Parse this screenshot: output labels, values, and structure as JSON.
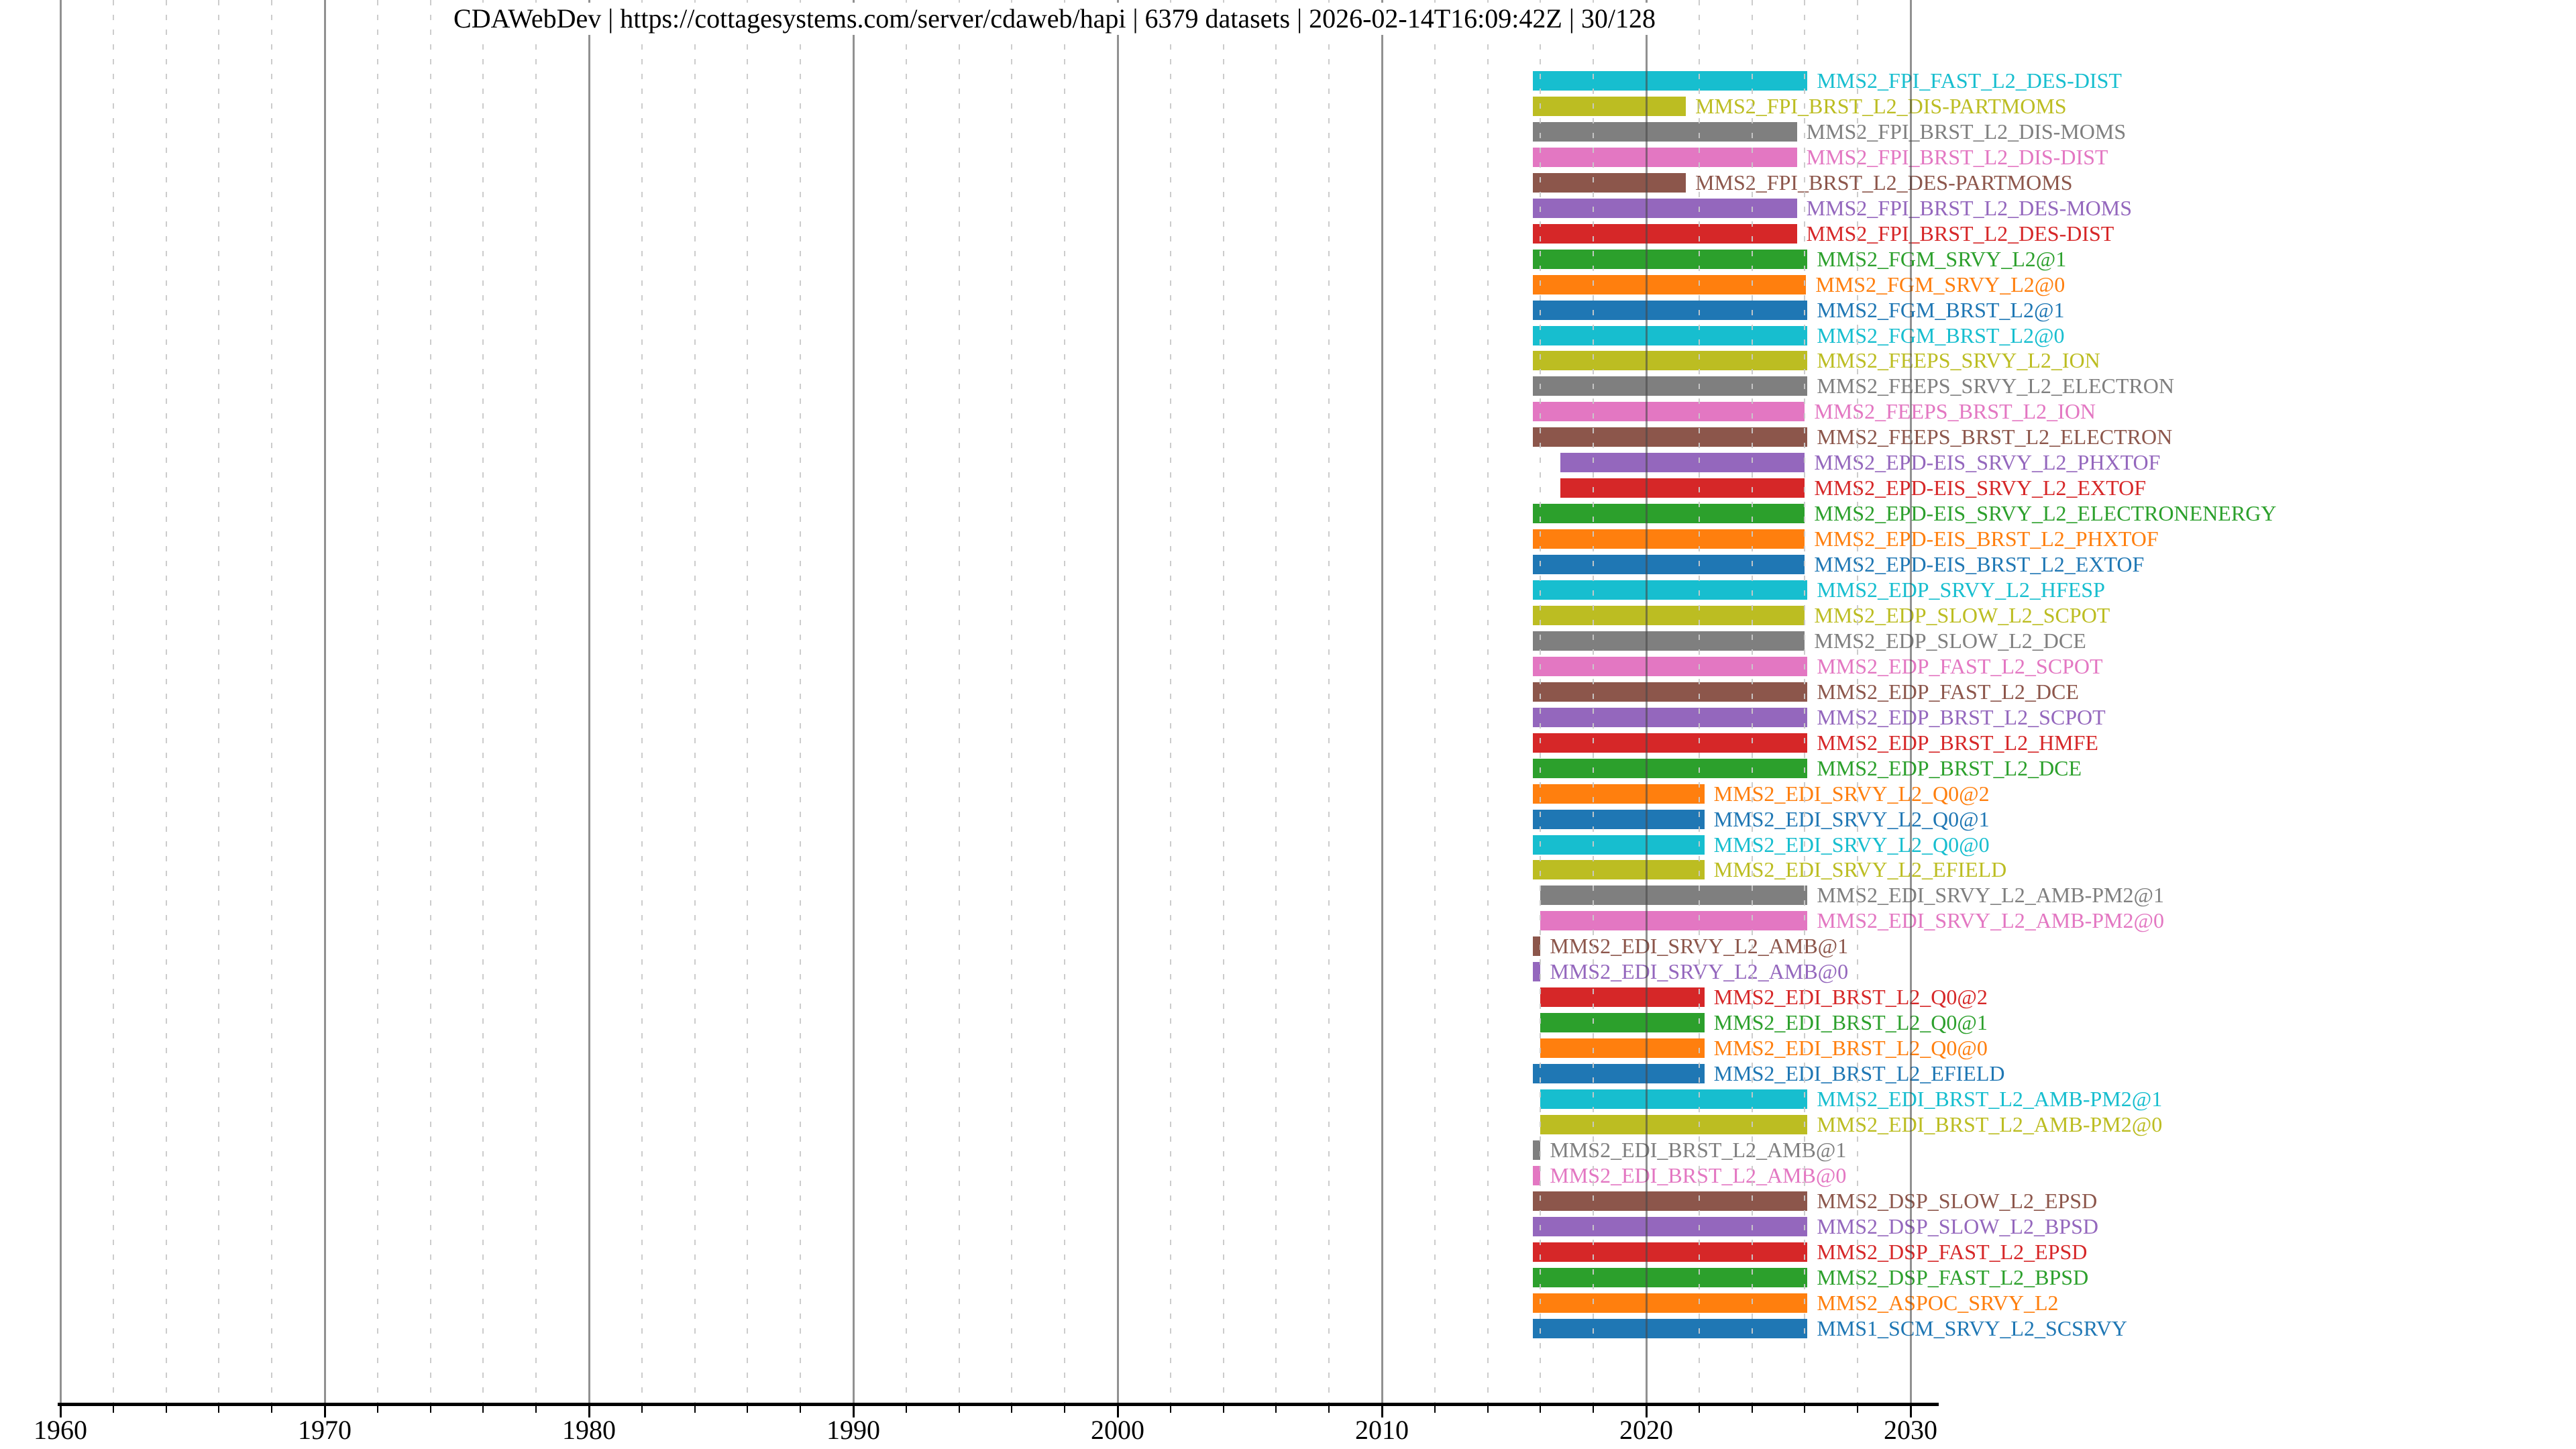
{
  "title": "CDAWebDev | https://cottagesystems.com/server/cdaweb/hapi | 6379 datasets | 2026-02-14T16:09:42Z | 30/128",
  "colors": {
    "background": "#ffffff",
    "title_text": "#000000",
    "major_grid": "#484848",
    "minor_grid": "#c9c9c9",
    "axis_spine": "#000000"
  },
  "chart_data": {
    "type": "bar",
    "orientation": "horizontal-timeline",
    "title": "CDAWebDev | https://cottagesystems.com/server/cdaweb/hapi | 6379 datasets | 2026-02-14T16:09:42Z | 30/128",
    "xlabel": "",
    "ylabel": "",
    "xlim": [
      1959.9,
      2031.1
    ],
    "x_ticks": [
      1960,
      1970,
      1980,
      1990,
      2000,
      2010,
      2020,
      2030
    ],
    "x_minor_step_years": 2,
    "grid": true,
    "legend": false,
    "rows": [
      {
        "label": "MMS2_FPI_FAST_L2_DES-DIST",
        "color": "#17becf",
        "start": 2015.7,
        "end": 2026.1
      },
      {
        "label": "MMS2_FPI_BRST_L2_DIS-PARTMOMS",
        "color": "#bcbd22",
        "start": 2015.7,
        "end": 2021.5
      },
      {
        "label": "MMS2_FPI_BRST_L2_DIS-MOMS",
        "color": "#7f7f7f",
        "start": 2015.7,
        "end": 2025.7
      },
      {
        "label": "MMS2_FPI_BRST_L2_DIS-DIST",
        "color": "#e377c2",
        "start": 2015.7,
        "end": 2025.7
      },
      {
        "label": "MMS2_FPI_BRST_L2_DES-PARTMOMS",
        "color": "#8c564b",
        "start": 2015.7,
        "end": 2021.5
      },
      {
        "label": "MMS2_FPI_BRST_L2_DES-MOMS",
        "color": "#9467bd",
        "start": 2015.7,
        "end": 2025.7
      },
      {
        "label": "MMS2_FPI_BRST_L2_DES-DIST",
        "color": "#d62728",
        "start": 2015.7,
        "end": 2025.7
      },
      {
        "label": "MMS2_FGM_SRVY_L2@1",
        "color": "#2ca02c",
        "start": 2015.7,
        "end": 2026.1
      },
      {
        "label": "MMS2_FGM_SRVY_L2@0",
        "color": "#ff7f0e",
        "start": 2015.7,
        "end": 2026.05
      },
      {
        "label": "MMS2_FGM_BRST_L2@1",
        "color": "#1f77b4",
        "start": 2015.7,
        "end": 2026.1
      },
      {
        "label": "MMS2_FGM_BRST_L2@0",
        "color": "#17becf",
        "start": 2015.7,
        "end": 2026.1
      },
      {
        "label": "MMS2_FEEPS_SRVY_L2_ION",
        "color": "#bcbd22",
        "start": 2015.7,
        "end": 2026.1
      },
      {
        "label": "MMS2_FEEPS_SRVY_L2_ELECTRON",
        "color": "#7f7f7f",
        "start": 2015.7,
        "end": 2026.1
      },
      {
        "label": "MMS2_FEEPS_BRST_L2_ION",
        "color": "#e377c2",
        "start": 2015.7,
        "end": 2026.0
      },
      {
        "label": "MMS2_FEEPS_BRST_L2_ELECTRON",
        "color": "#8c564b",
        "start": 2015.7,
        "end": 2026.1
      },
      {
        "label": "MMS2_EPD-EIS_SRVY_L2_PHXTOF",
        "color": "#9467bd",
        "start": 2016.75,
        "end": 2026.0
      },
      {
        "label": "MMS2_EPD-EIS_SRVY_L2_EXTOF",
        "color": "#d62728",
        "start": 2016.75,
        "end": 2026.0
      },
      {
        "label": "MMS2_EPD-EIS_SRVY_L2_ELECTRONENERGY",
        "color": "#2ca02c",
        "start": 2015.7,
        "end": 2026.0
      },
      {
        "label": "MMS2_EPD-EIS_BRST_L2_PHXTOF",
        "color": "#ff7f0e",
        "start": 2015.7,
        "end": 2026.0
      },
      {
        "label": "MMS2_EPD-EIS_BRST_L2_EXTOF",
        "color": "#1f77b4",
        "start": 2015.7,
        "end": 2026.0
      },
      {
        "label": "MMS2_EDP_SRVY_L2_HFESP",
        "color": "#17becf",
        "start": 2015.7,
        "end": 2026.1
      },
      {
        "label": "MMS2_EDP_SLOW_L2_SCPOT",
        "color": "#bcbd22",
        "start": 2015.7,
        "end": 2026.0
      },
      {
        "label": "MMS2_EDP_SLOW_L2_DCE",
        "color": "#7f7f7f",
        "start": 2015.7,
        "end": 2026.0
      },
      {
        "label": "MMS2_EDP_FAST_L2_SCPOT",
        "color": "#e377c2",
        "start": 2015.7,
        "end": 2026.1
      },
      {
        "label": "MMS2_EDP_FAST_L2_DCE",
        "color": "#8c564b",
        "start": 2015.7,
        "end": 2026.1
      },
      {
        "label": "MMS2_EDP_BRST_L2_SCPOT",
        "color": "#9467bd",
        "start": 2015.7,
        "end": 2026.1
      },
      {
        "label": "MMS2_EDP_BRST_L2_HMFE",
        "color": "#d62728",
        "start": 2015.7,
        "end": 2026.1
      },
      {
        "label": "MMS2_EDP_BRST_L2_DCE",
        "color": "#2ca02c",
        "start": 2015.7,
        "end": 2026.1
      },
      {
        "label": "MMS2_EDI_SRVY_L2_Q0@2",
        "color": "#ff7f0e",
        "start": 2015.7,
        "end": 2022.2
      },
      {
        "label": "MMS2_EDI_SRVY_L2_Q0@1",
        "color": "#1f77b4",
        "start": 2015.7,
        "end": 2022.2
      },
      {
        "label": "MMS2_EDI_SRVY_L2_Q0@0",
        "color": "#17becf",
        "start": 2015.7,
        "end": 2022.2
      },
      {
        "label": "MMS2_EDI_SRVY_L2_EFIELD",
        "color": "#bcbd22",
        "start": 2015.7,
        "end": 2022.2
      },
      {
        "label": "MMS2_EDI_SRVY_L2_AMB-PM2@1",
        "color": "#7f7f7f",
        "start": 2016.0,
        "end": 2026.1
      },
      {
        "label": "MMS2_EDI_SRVY_L2_AMB-PM2@0",
        "color": "#e377c2",
        "start": 2016.0,
        "end": 2026.1
      },
      {
        "label": "MMS2_EDI_SRVY_L2_AMB@1",
        "color": "#8c564b",
        "start": 2015.7,
        "end": 2016.0
      },
      {
        "label": "MMS2_EDI_SRVY_L2_AMB@0",
        "color": "#9467bd",
        "start": 2015.7,
        "end": 2016.0
      },
      {
        "label": "MMS2_EDI_BRST_L2_Q0@2",
        "color": "#d62728",
        "start": 2016.0,
        "end": 2022.2
      },
      {
        "label": "MMS2_EDI_BRST_L2_Q0@1",
        "color": "#2ca02c",
        "start": 2016.0,
        "end": 2022.2
      },
      {
        "label": "MMS2_EDI_BRST_L2_Q0@0",
        "color": "#ff7f0e",
        "start": 2016.0,
        "end": 2022.2
      },
      {
        "label": "MMS2_EDI_BRST_L2_EFIELD",
        "color": "#1f77b4",
        "start": 2015.7,
        "end": 2022.2
      },
      {
        "label": "MMS2_EDI_BRST_L2_AMB-PM2@1",
        "color": "#17becf",
        "start": 2016.0,
        "end": 2026.1
      },
      {
        "label": "MMS2_EDI_BRST_L2_AMB-PM2@0",
        "color": "#bcbd22",
        "start": 2016.0,
        "end": 2026.1
      },
      {
        "label": "MMS2_EDI_BRST_L2_AMB@1",
        "color": "#7f7f7f",
        "start": 2015.7,
        "end": 2016.0
      },
      {
        "label": "MMS2_EDI_BRST_L2_AMB@0",
        "color": "#e377c2",
        "start": 2015.7,
        "end": 2016.0
      },
      {
        "label": "MMS2_DSP_SLOW_L2_EPSD",
        "color": "#8c564b",
        "start": 2015.7,
        "end": 2026.1
      },
      {
        "label": "MMS2_DSP_SLOW_L2_BPSD",
        "color": "#9467bd",
        "start": 2015.7,
        "end": 2026.1
      },
      {
        "label": "MMS2_DSP_FAST_L2_EPSD",
        "color": "#d62728",
        "start": 2015.7,
        "end": 2026.1
      },
      {
        "label": "MMS2_DSP_FAST_L2_BPSD",
        "color": "#2ca02c",
        "start": 2015.7,
        "end": 2026.1
      },
      {
        "label": "MMS2_ASPOC_SRVY_L2",
        "color": "#ff7f0e",
        "start": 2015.7,
        "end": 2026.1
      },
      {
        "label": "MMS1_SCM_SRVY_L2_SCSRVY",
        "color": "#1f77b4",
        "start": 2015.7,
        "end": 2026.1
      }
    ]
  }
}
